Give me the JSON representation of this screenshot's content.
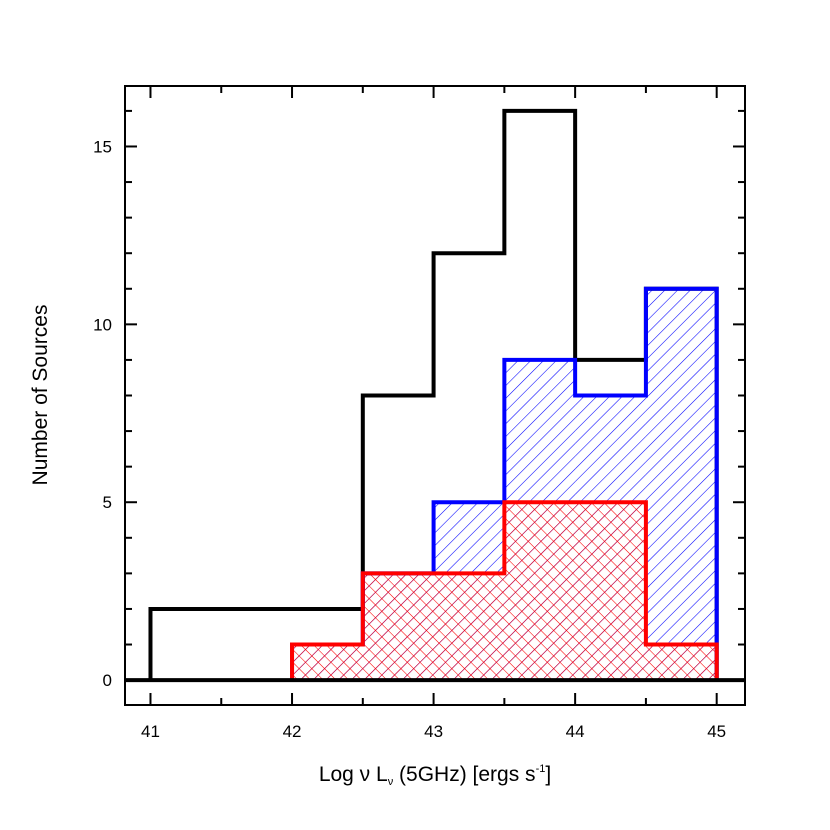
{
  "chart_data": {
    "type": "bar",
    "xlabel": "Log ν L",
    "xlabel_sub": "ν",
    "xlabel_rest": " (5GHz) [ergs s",
    "xlabel_sup": "-1",
    "xlabel_end": "]",
    "ylabel": "Number of Sources",
    "xlim": [
      40.82,
      45.2
    ],
    "ylim": [
      -0.7,
      16.7
    ],
    "xticks": [
      41,
      42,
      43,
      44,
      45
    ],
    "yticks": [
      0,
      5,
      10,
      15
    ],
    "bin_edges": [
      41.0,
      41.5,
      42.0,
      42.5,
      43.0,
      43.5,
      44.0,
      44.5,
      45.0
    ],
    "series": [
      {
        "style": "outline",
        "color": "#000000",
        "values": [
          2,
          2,
          2,
          8,
          12,
          16,
          9,
          11
        ]
      },
      {
        "style": "hatched-diagonal",
        "color": "#0000ff",
        "values": [
          0,
          0,
          1,
          3,
          5,
          9,
          8,
          11
        ]
      },
      {
        "style": "hatched-crosshatch",
        "color": "#ff0000",
        "values": [
          0,
          0,
          1,
          3,
          3,
          5,
          5,
          1
        ]
      }
    ],
    "grid": false,
    "legend": "none"
  }
}
